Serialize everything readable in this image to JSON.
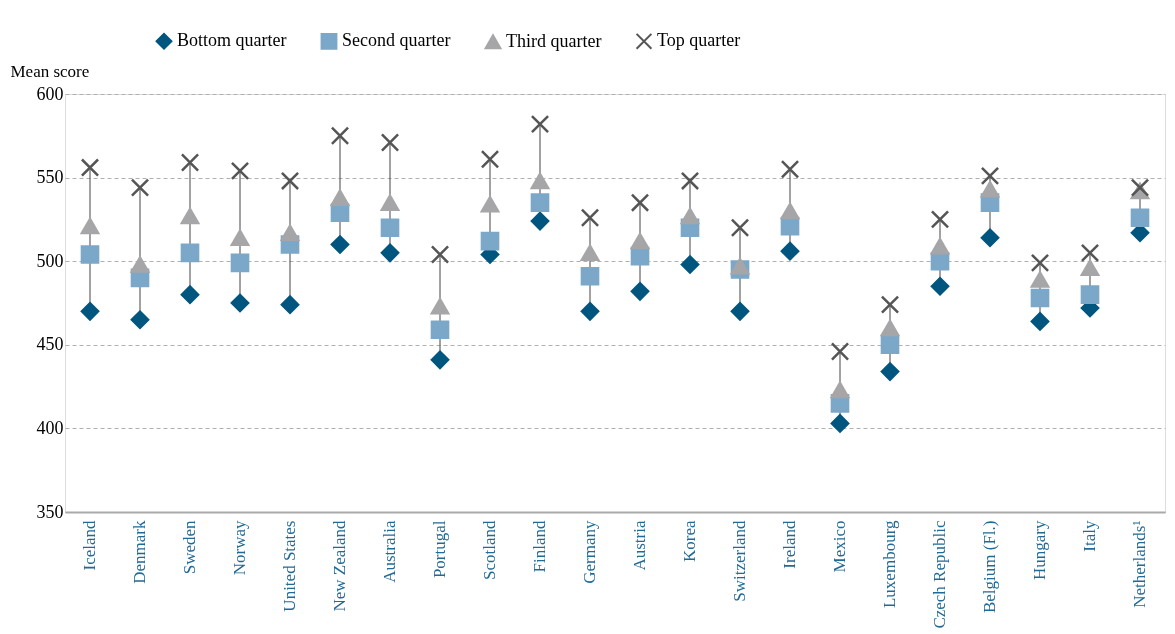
{
  "chart_data": {
    "type": "scatter",
    "ylabel": "Mean score",
    "categories": [
      "Iceland",
      "Denmark",
      "Sweden",
      "Norway",
      "United States",
      "New Zealand",
      "Australia",
      "Portugal",
      "Scotland",
      "Finland",
      "Germany",
      "Austria",
      "Korea",
      "Switzerland",
      "Ireland",
      "Mexico",
      "Luxembourg",
      "Czech Republic",
      "Belgium (Fl.)",
      "Hungary",
      "Italy",
      "Netherlands¹"
    ],
    "series": [
      {
        "name": "Bottom quarter",
        "color": "#00567f",
        "marker": "diamond",
        "values": [
          470,
          465,
          480,
          475,
          474,
          510,
          505,
          441,
          504,
          524,
          470,
          482,
          498,
          470,
          506,
          403,
          434,
          485,
          514,
          464,
          472,
          517
        ]
      },
      {
        "name": "Second quarter",
        "color": "#7ba7c8",
        "marker": "square",
        "values": [
          504,
          490,
          505,
          499,
          510,
          529,
          520,
          459,
          512,
          535,
          491,
          503,
          520,
          495,
          521,
          415,
          450,
          500,
          535,
          478,
          480,
          526
        ]
      },
      {
        "name": "Third quarter",
        "color": "#a6a6a8",
        "marker": "triangle",
        "values": [
          521,
          498,
          527,
          514,
          517,
          538,
          535,
          473,
          534,
          548,
          505,
          512,
          527,
          497,
          530,
          423,
          460,
          509,
          543,
          489,
          496,
          542
        ]
      },
      {
        "name": "Top quarter",
        "color": "#555555",
        "marker": "cross",
        "values": [
          556,
          544,
          559,
          554,
          548,
          575,
          571,
          504,
          561,
          582,
          526,
          535,
          548,
          520,
          555,
          446,
          474,
          525,
          551,
          499,
          505,
          544
        ]
      }
    ],
    "ylim": [
      350,
      600
    ],
    "yticks": [
      350,
      400,
      450,
      500,
      550,
      600
    ],
    "grid": "y",
    "legend": "top"
  }
}
